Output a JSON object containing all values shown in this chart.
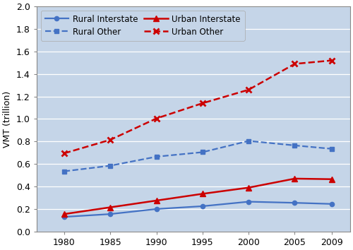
{
  "years": [
    1980,
    1985,
    1990,
    1995,
    2000,
    2005,
    2009
  ],
  "rural_interstate": [
    0.13,
    0.155,
    0.2,
    0.225,
    0.265,
    0.255,
    0.245
  ],
  "rural_other": [
    0.535,
    0.585,
    0.665,
    0.705,
    0.805,
    0.765,
    0.735
  ],
  "urban_interstate": [
    0.155,
    0.215,
    0.275,
    0.335,
    0.39,
    0.47,
    0.465
  ],
  "urban_other": [
    0.695,
    0.815,
    1.005,
    1.14,
    1.26,
    1.49,
    1.52
  ],
  "color_blue": "#4472C4",
  "color_red": "#CC0000",
  "bg_color": "#C5D5E8",
  "ylabel": "VMT (trillion)",
  "ylim": [
    0.0,
    2.0
  ],
  "yticks": [
    0.0,
    0.2,
    0.4,
    0.6,
    0.8,
    1.0,
    1.2,
    1.4,
    1.6,
    1.8,
    2.0
  ],
  "xticks": [
    1980,
    1985,
    1990,
    1995,
    2000,
    2005,
    2009
  ],
  "legend_rural_interstate": "Rural Interstate",
  "legend_rural_other": "Rural Other",
  "legend_urban_interstate": "Urban Interstate",
  "legend_urban_other": "Urban Other"
}
